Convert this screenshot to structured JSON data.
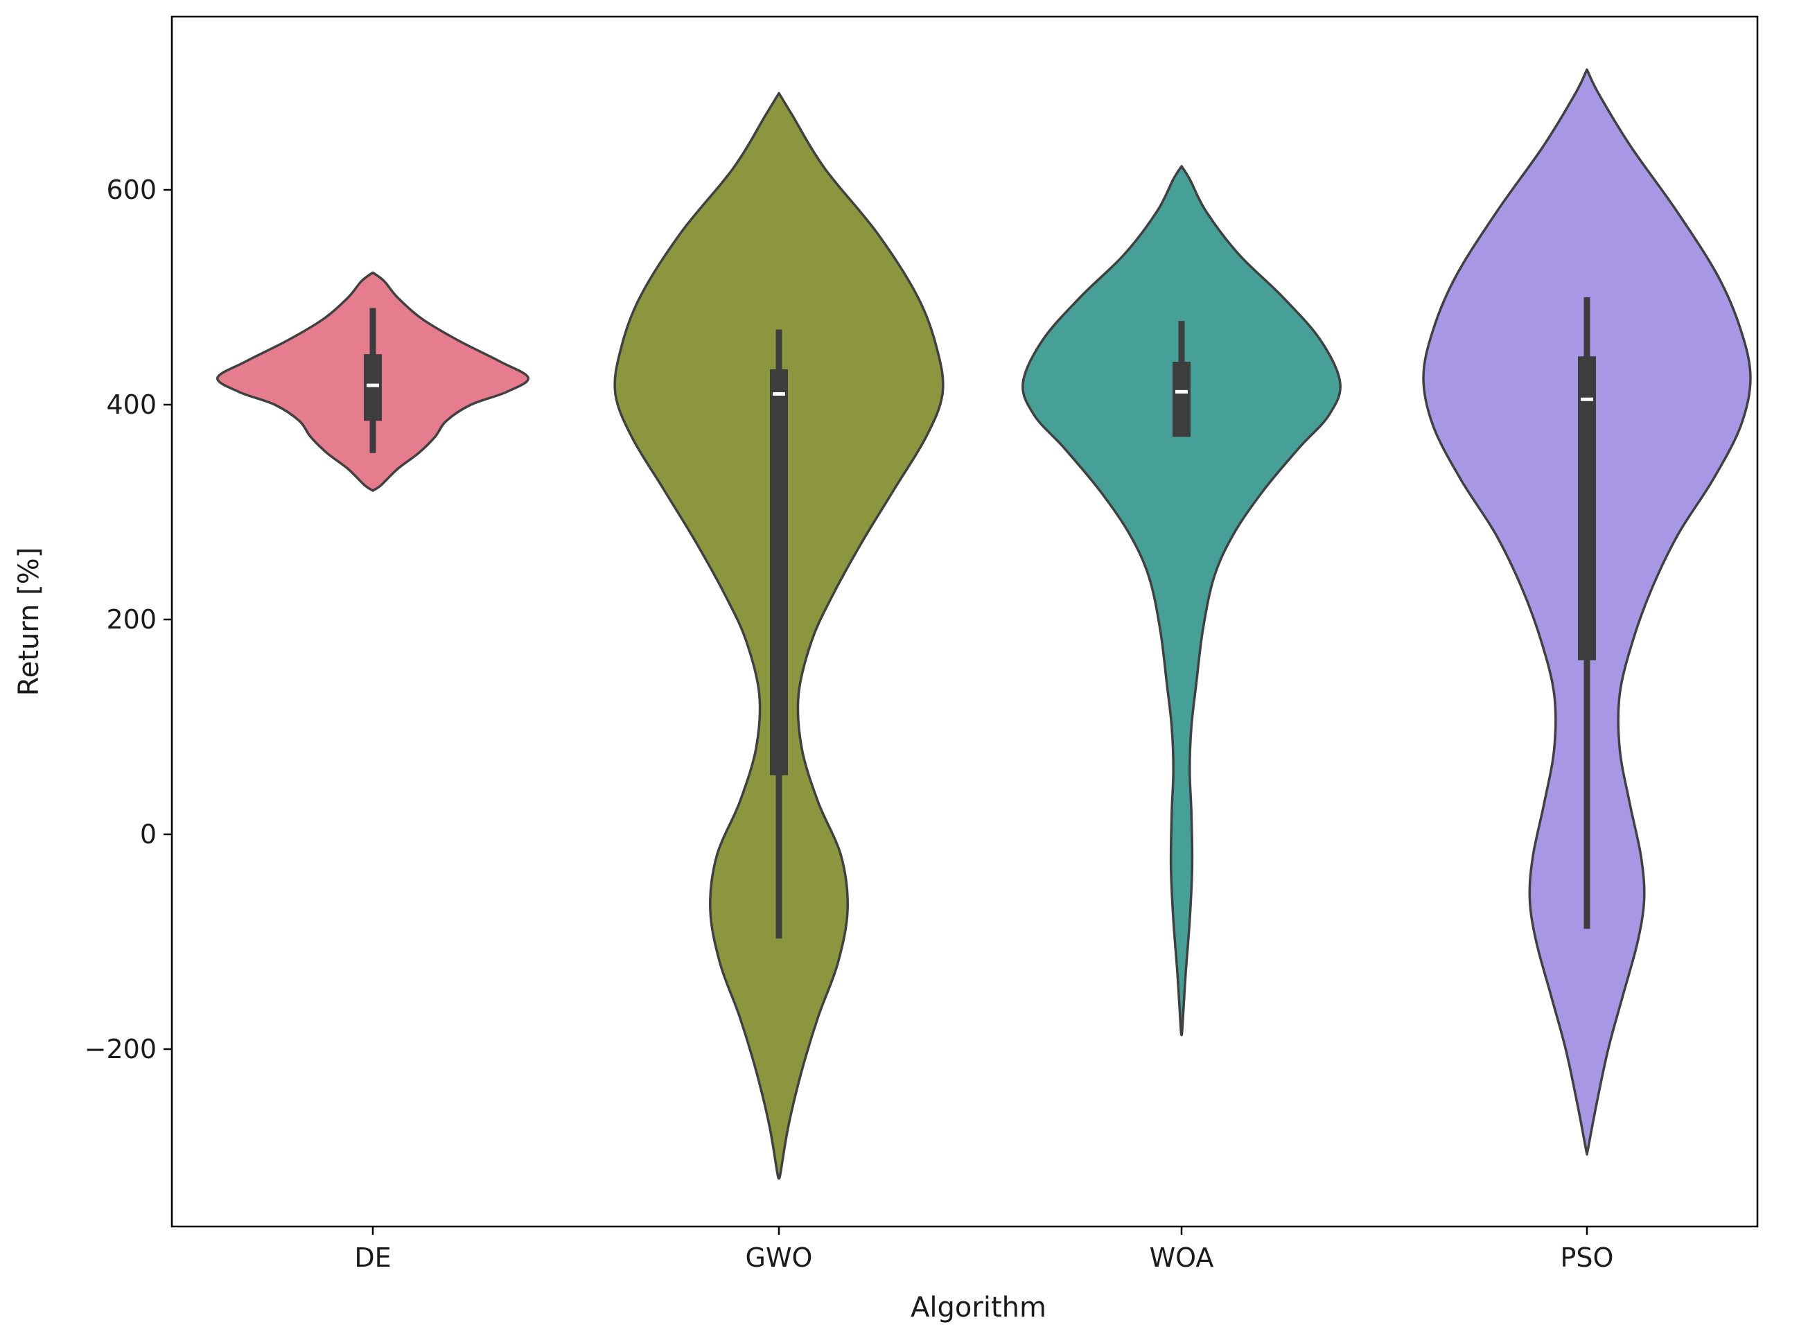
{
  "chart_data": {
    "type": "violin",
    "title": "",
    "xlabel": "Algorithm",
    "ylabel": "Return [%]",
    "ylim": [
      -365,
      765
    ],
    "yticks": [
      -200,
      0,
      200,
      400,
      600
    ],
    "ytick_labels": [
      "−200",
      "0",
      "200",
      "400",
      "600"
    ],
    "grid": false,
    "legend": "none",
    "categories": [
      "DE",
      "GWO",
      "WOA",
      "PSO"
    ],
    "series": [
      {
        "category": "DE",
        "color": "#e67d8f",
        "median": 418,
        "q1": 385,
        "q3": 447,
        "whisker_low": 355,
        "whisker_high": 490,
        "density": [
          [
            523,
            0
          ],
          [
            515,
            0.07
          ],
          [
            500,
            0.15
          ],
          [
            480,
            0.3
          ],
          [
            460,
            0.52
          ],
          [
            440,
            0.78
          ],
          [
            425,
            0.95
          ],
          [
            412,
            0.82
          ],
          [
            400,
            0.6
          ],
          [
            385,
            0.45
          ],
          [
            370,
            0.38
          ],
          [
            355,
            0.28
          ],
          [
            340,
            0.15
          ],
          [
            325,
            0.05
          ],
          [
            320,
            0
          ]
        ]
      },
      {
        "category": "GWO",
        "color": "#8b963e",
        "median": 410,
        "q1": 55,
        "q3": 433,
        "whisker_low": -97,
        "whisker_high": 470,
        "density": [
          [
            690,
            0
          ],
          [
            670,
            0.08
          ],
          [
            620,
            0.28
          ],
          [
            560,
            0.6
          ],
          [
            500,
            0.85
          ],
          [
            450,
            0.97
          ],
          [
            410,
            1.0
          ],
          [
            370,
            0.9
          ],
          [
            320,
            0.7
          ],
          [
            270,
            0.5
          ],
          [
            220,
            0.32
          ],
          [
            180,
            0.2
          ],
          [
            130,
            0.12
          ],
          [
            80,
            0.14
          ],
          [
            30,
            0.24
          ],
          [
            -20,
            0.38
          ],
          [
            -70,
            0.42
          ],
          [
            -120,
            0.36
          ],
          [
            -170,
            0.24
          ],
          [
            -220,
            0.14
          ],
          [
            -270,
            0.06
          ],
          [
            -315,
            0.01
          ],
          [
            -320,
            0
          ]
        ]
      },
      {
        "category": "WOA",
        "color": "#46a098",
        "median": 412,
        "q1": 370,
        "q3": 440,
        "whisker_low": 370,
        "whisker_high": 478,
        "density": [
          [
            622,
            0
          ],
          [
            610,
            0.05
          ],
          [
            580,
            0.15
          ],
          [
            540,
            0.35
          ],
          [
            500,
            0.62
          ],
          [
            460,
            0.85
          ],
          [
            420,
            0.97
          ],
          [
            390,
            0.9
          ],
          [
            360,
            0.72
          ],
          [
            320,
            0.5
          ],
          [
            280,
            0.32
          ],
          [
            240,
            0.2
          ],
          [
            190,
            0.13
          ],
          [
            140,
            0.09
          ],
          [
            100,
            0.06
          ],
          [
            60,
            0.05
          ],
          [
            20,
            0.06
          ],
          [
            -30,
            0.065
          ],
          [
            -80,
            0.05
          ],
          [
            -130,
            0.025
          ],
          [
            -180,
            0.005
          ],
          [
            -187,
            0
          ]
        ]
      },
      {
        "category": "PSO",
        "color": "#a797e4",
        "median": 405,
        "q1": 162,
        "q3": 445,
        "whisker_low": -88,
        "whisker_high": 500,
        "density": [
          [
            712,
            0
          ],
          [
            690,
            0.07
          ],
          [
            640,
            0.27
          ],
          [
            580,
            0.55
          ],
          [
            520,
            0.8
          ],
          [
            470,
            0.94
          ],
          [
            425,
            1.0
          ],
          [
            380,
            0.94
          ],
          [
            330,
            0.77
          ],
          [
            280,
            0.56
          ],
          [
            230,
            0.4
          ],
          [
            180,
            0.28
          ],
          [
            130,
            0.2
          ],
          [
            80,
            0.2
          ],
          [
            30,
            0.26
          ],
          [
            -20,
            0.33
          ],
          [
            -60,
            0.35
          ],
          [
            -100,
            0.31
          ],
          [
            -150,
            0.22
          ],
          [
            -200,
            0.13
          ],
          [
            -250,
            0.06
          ],
          [
            -290,
            0.01
          ],
          [
            -298,
            0
          ]
        ]
      }
    ]
  }
}
